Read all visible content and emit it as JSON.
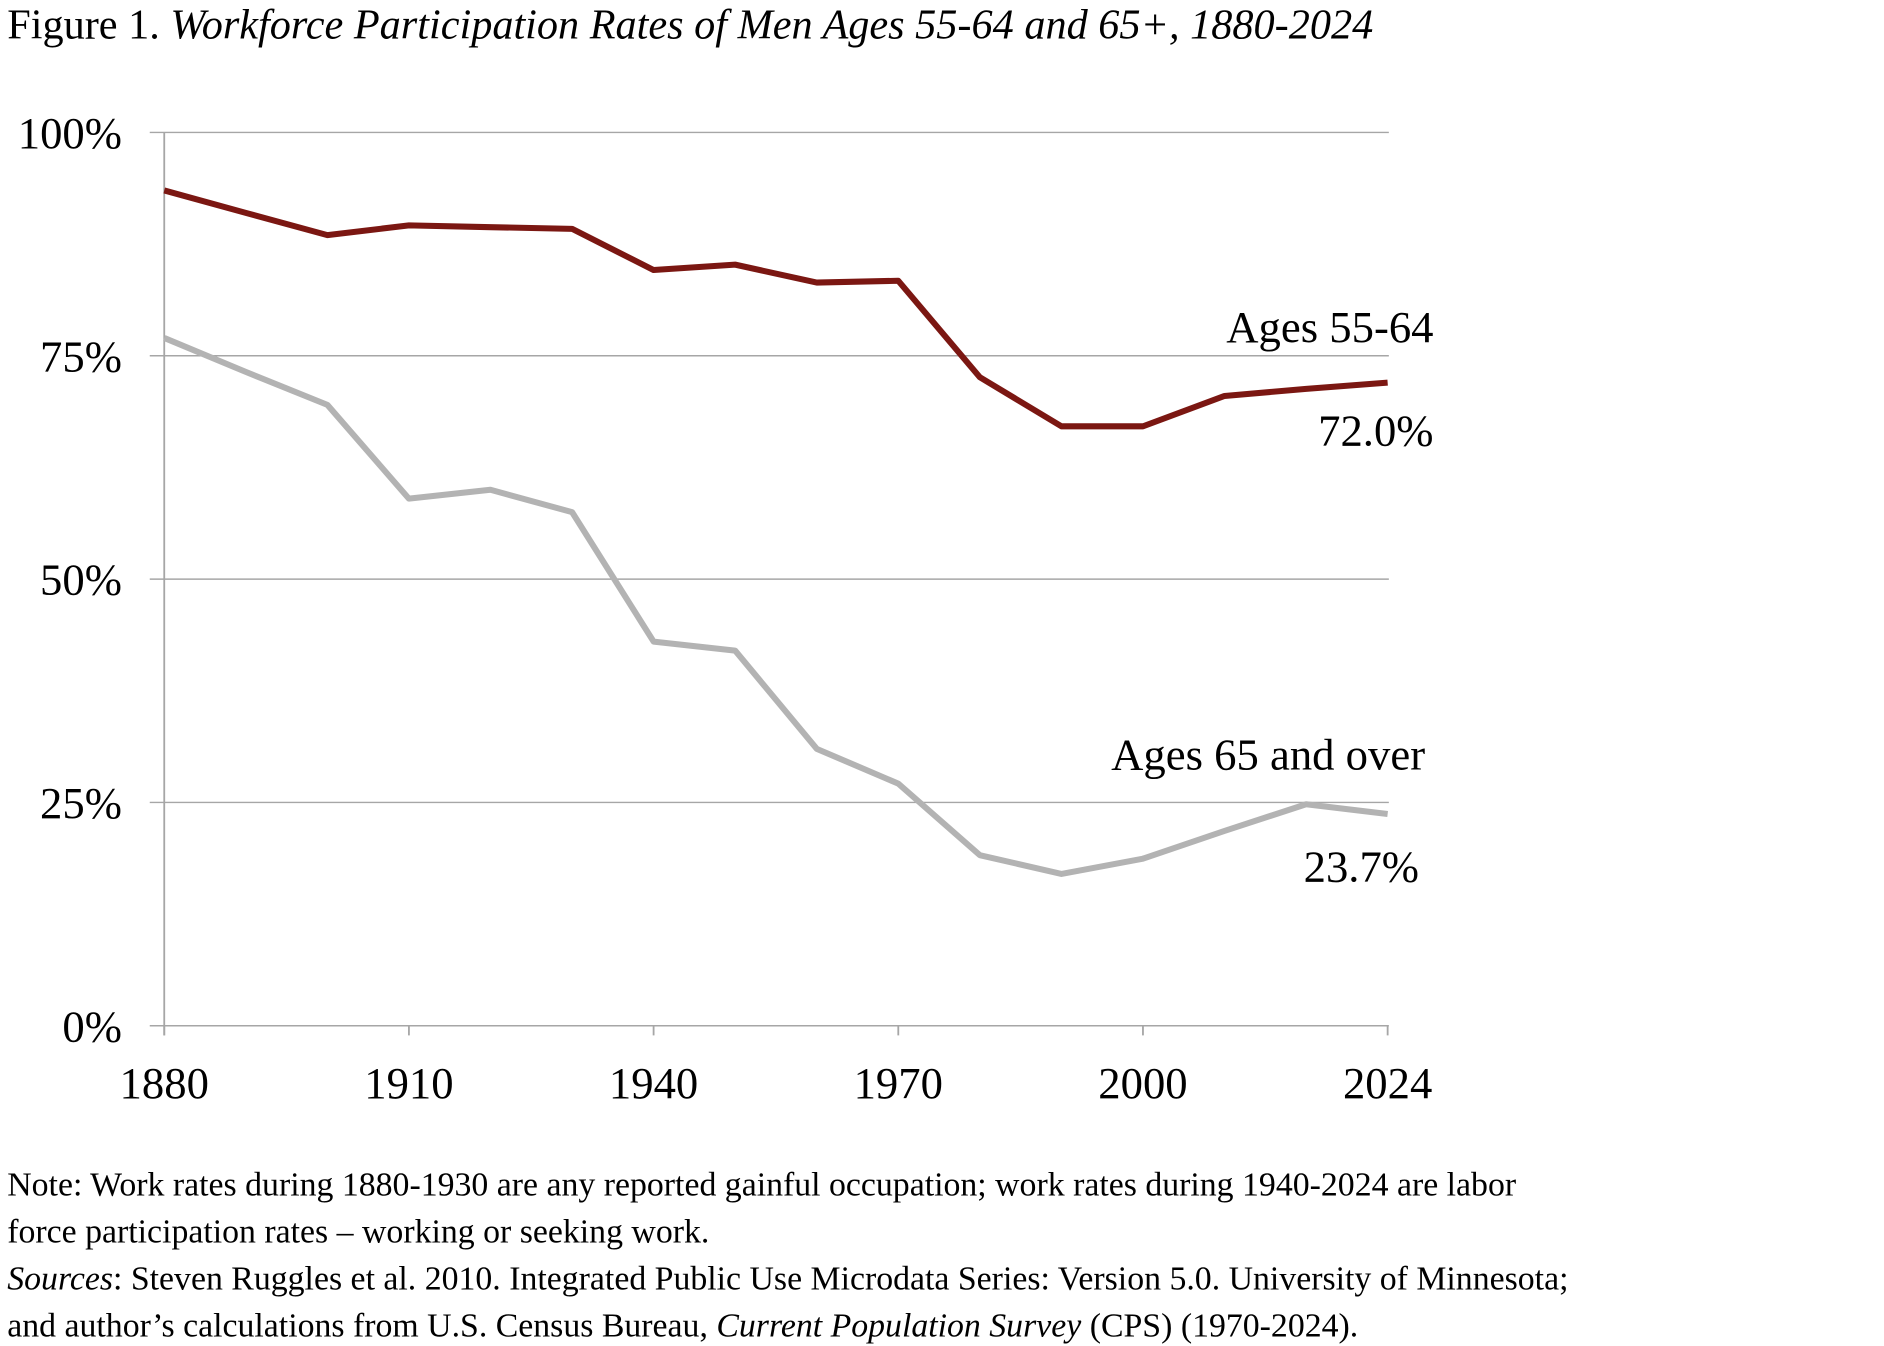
{
  "chart_data": {
    "type": "line",
    "figure_label": "Figure 1.",
    "title": "Workforce Participation Rates of Men Ages 55-64 and 65+, 1880-2024",
    "categories": [
      "1880",
      null,
      null,
      "1910",
      null,
      null,
      "1940",
      null,
      null,
      "1970",
      null,
      null,
      "2000",
      null,
      null,
      "2024"
    ],
    "series": [
      {
        "name": "Ages 55-64",
        "color": "#7b1712",
        "values": [
          93.5,
          91.0,
          88.5,
          89.6,
          89.4,
          89.2,
          84.6,
          85.2,
          83.2,
          83.4,
          72.6,
          67.1,
          67.1,
          70.5,
          71.3,
          72.0
        ],
        "value_labels": [
          null,
          null,
          null,
          null,
          null,
          null,
          null,
          null,
          null,
          null,
          null,
          null,
          null,
          null,
          null,
          "72.0%"
        ]
      },
      {
        "name": "Ages 65 and over",
        "color": "#b3b3b3",
        "values": [
          77.0,
          73.2,
          69.5,
          59.0,
          60.0,
          57.5,
          43.0,
          42.0,
          31.0,
          27.1,
          19.1,
          17.0,
          18.7,
          21.8,
          24.8,
          23.7
        ],
        "value_labels": [
          null,
          null,
          null,
          null,
          null,
          null,
          null,
          null,
          null,
          null,
          null,
          null,
          null,
          null,
          null,
          "23.7%"
        ]
      }
    ],
    "ylim": [
      0,
      100
    ],
    "yticks": [
      {
        "value": 0,
        "label": "0%"
      },
      {
        "value": 25,
        "label": "25%"
      },
      {
        "value": 50,
        "label": "50%"
      },
      {
        "value": 75,
        "label": "75%"
      },
      {
        "value": 100,
        "label": "100%"
      }
    ],
    "grid": true,
    "note": [
      "Note: Work rates during 1880-1930 are any reported gainful occupation; work rates during 1940-2024 are labor",
      "force participation rates – working or seeking work."
    ],
    "sources": {
      "label": "Sources",
      "line_1": ": Steven Ruggles et al. 2010. Integrated Public Use Microdata Series: Version 5.0. University of Minnesota;",
      "line_2a": "and author’s calculations from U.S. Census Bureau, ",
      "line_2_italic": "Current Population Survey",
      "line_2b": " (CPS) (1970-2024)."
    }
  }
}
